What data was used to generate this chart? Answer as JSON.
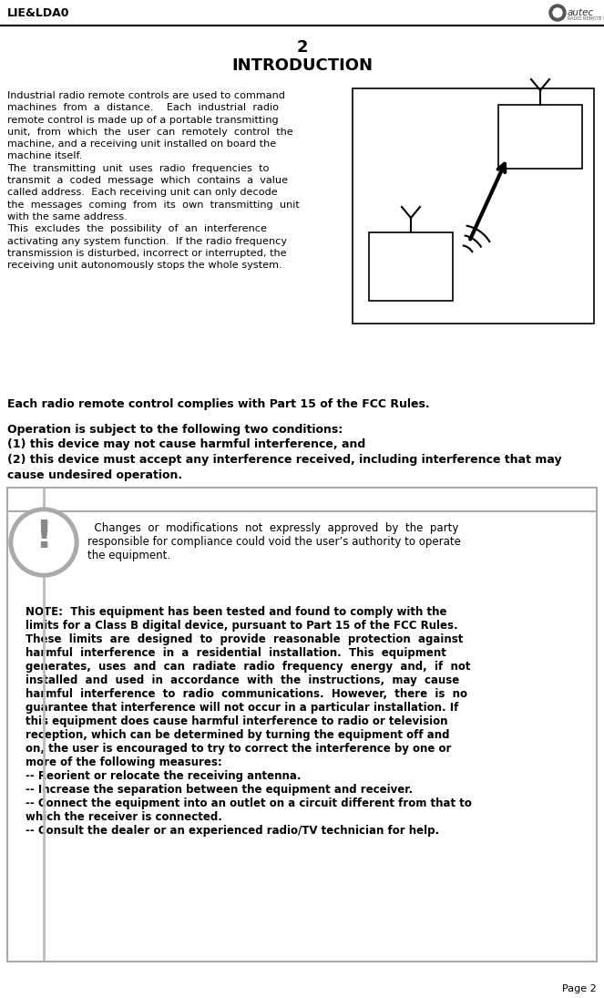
{
  "page_num": "2",
  "title": "INTRODUCTION",
  "header_left": "LIE&LDA0",
  "footer_right": "Page 2",
  "bg_color": "#ffffff",
  "gray_color": "#888888",
  "light_gray": "#aaaaaa",
  "intro_lines": [
    "Industrial radio remote controls are used to command",
    "machines  from  a  distance.    Each  industrial  radio",
    "remote control is made up of a portable transmitting",
    "unit,  from  which  the  user  can  remotely  control  the",
    "machine, and a receiving unit installed on board the",
    "machine itself.",
    "The  transmitting  unit  uses  radio  frequencies  to",
    "transmit  a  coded  message  which  contains  a  value",
    "called address.  Each receiving unit can only decode",
    "the  messages  coming  from  its  own  transmitting  unit",
    "with the same address.",
    "This  excludes  the  possibility  of  an  interference",
    "activating any system function.  If the radio frequency",
    "transmission is disturbed, incorrect or interrupted, the",
    "receiving unit autonomously stops the whole system."
  ],
  "fcc_line": "Each radio remote control complies with Part 15 of the FCC Rules.",
  "op_lines": [
    "Operation is subject to the following two conditions:",
    "(1) this device may not cause harmful interference, and",
    "(2) this device must accept any interference received, including interference that may",
    "cause undesired operation."
  ],
  "warn_lines": [
    "  Changes  or  modifications  not  expressly  approved  by  the  party",
    "responsible for compliance could void the user’s authority to operate",
    "the equipment."
  ],
  "note_lines": [
    "NOTE:  This equipment has been tested and found to comply with the",
    "limits for a Class B digital device, pursuant to Part 15 of the FCC Rules.",
    "These  limits  are  designed  to  provide  reasonable  protection  against",
    "harmful  interference  in  a  residential  installation.  This  equipment",
    "generates,  uses  and  can  radiate  radio  frequency  energy  and,  if  not",
    "installed  and  used  in  accordance  with  the  instructions,  may  cause",
    "harmful  interference  to  radio  communications.  However,  there  is  no",
    "guarantee that interference will not occur in a particular installation. If",
    "this equipment does cause harmful interference to radio or television",
    "reception, which can be determined by turning the equipment off and",
    "on, the user is encouraged to try to correct the interference by one or",
    "more of the following measures:",
    "-- Reorient or relocate the receiving antenna.",
    "-- Increase the separation between the equipment and receiver.",
    "-- Connect the equipment into an outlet on a circuit different from that to",
    "which the receiver is connected.",
    "-- Consult the dealer or an experienced radio/TV technician for help."
  ]
}
